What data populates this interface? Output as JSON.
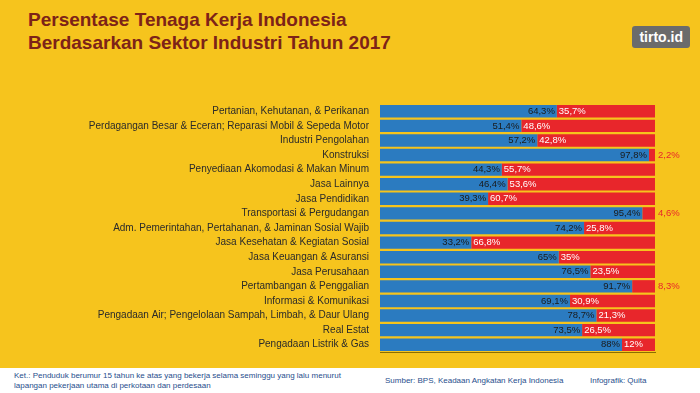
{
  "chart_data": {
    "type": "bar",
    "title": "Persentase Tenaga Kerja Indonesia\nBerdasarkan Sektor Industri Tahun 2017",
    "annotations": [
      "Ket.: Penduduk berumur 15 tahun ke atas yang bekerja selama seminggu yang lalu menurut lapangan pekerjaan utama di perkotaan dan perdesaan",
      "Sumber: BPS, Keadaan Angkatan Kerja Indonesia",
      "Infografik: Quita",
      "tirto.id"
    ],
    "categories": [
      "Pertanian, Kehutanan, & Perikanan",
      "Perdagangan Besar & Eceran; Reparasi Mobil & Sepeda Motor",
      "Industri Pengolahan",
      "Konstruksi",
      "Penyediaan Akomodasi & Makan Minum",
      "Jasa Lainnya",
      "Jasa Pendidikan",
      "Transportasi & Pergudangan",
      "Adm. Pemerintahan, Pertahanan, & Jaminan Sosial Wajib",
      "Jasa Kesehatan & Kegiatan Sosial",
      "Jasa Keuangan & Asuransi",
      "Jasa Perusahaan",
      "Pertambangan & Penggalian",
      "Informasi & Komunikasi",
      "Pengadaan Air; Pengelolaan Sampah, Limbah, & Daur Ulang",
      "Real Estat",
      "Pengadaan Listrik & Gas"
    ],
    "series": [
      {
        "color": "#2b7bc0",
        "values": [
          64.3,
          51.4,
          57.2,
          97.8,
          44.3,
          46.4,
          39.3,
          95.4,
          74.2,
          33.2,
          65,
          76.5,
          91.7,
          69.1,
          78.7,
          73.5,
          88
        ],
        "value_labels": [
          "64,3%",
          "51,4%",
          "57,2%",
          "97,8%",
          "44,3%",
          "46,4%",
          "39,3%",
          "95,4%",
          "74,2%",
          "33,2%",
          "65%",
          "76,5%",
          "91,7%",
          "69,1%",
          "78,7%",
          "73,5%",
          "88%"
        ]
      },
      {
        "color": "#e8262b",
        "values": [
          35.7,
          48.6,
          42.8,
          2.2,
          55.7,
          53.6,
          60.7,
          4.6,
          25.8,
          66.8,
          35,
          23.5,
          8.3,
          30.9,
          21.3,
          26.5,
          12
        ],
        "value_labels": [
          "35,7%",
          "48,6%",
          "42,8%",
          "2,2%",
          "55,7%",
          "53,6%",
          "60,7%",
          "4,6%",
          "25,8%",
          "66,8%",
          "35%",
          "23,5%",
          "8,3%",
          "30,9%",
          "21,3%",
          "26,5%",
          "12%"
        ]
      }
    ],
    "xlim": [
      0,
      100
    ],
    "orientation": "horizontal",
    "stacked": true,
    "data_labels": true,
    "tick_labels": "y",
    "grid": false
  }
}
